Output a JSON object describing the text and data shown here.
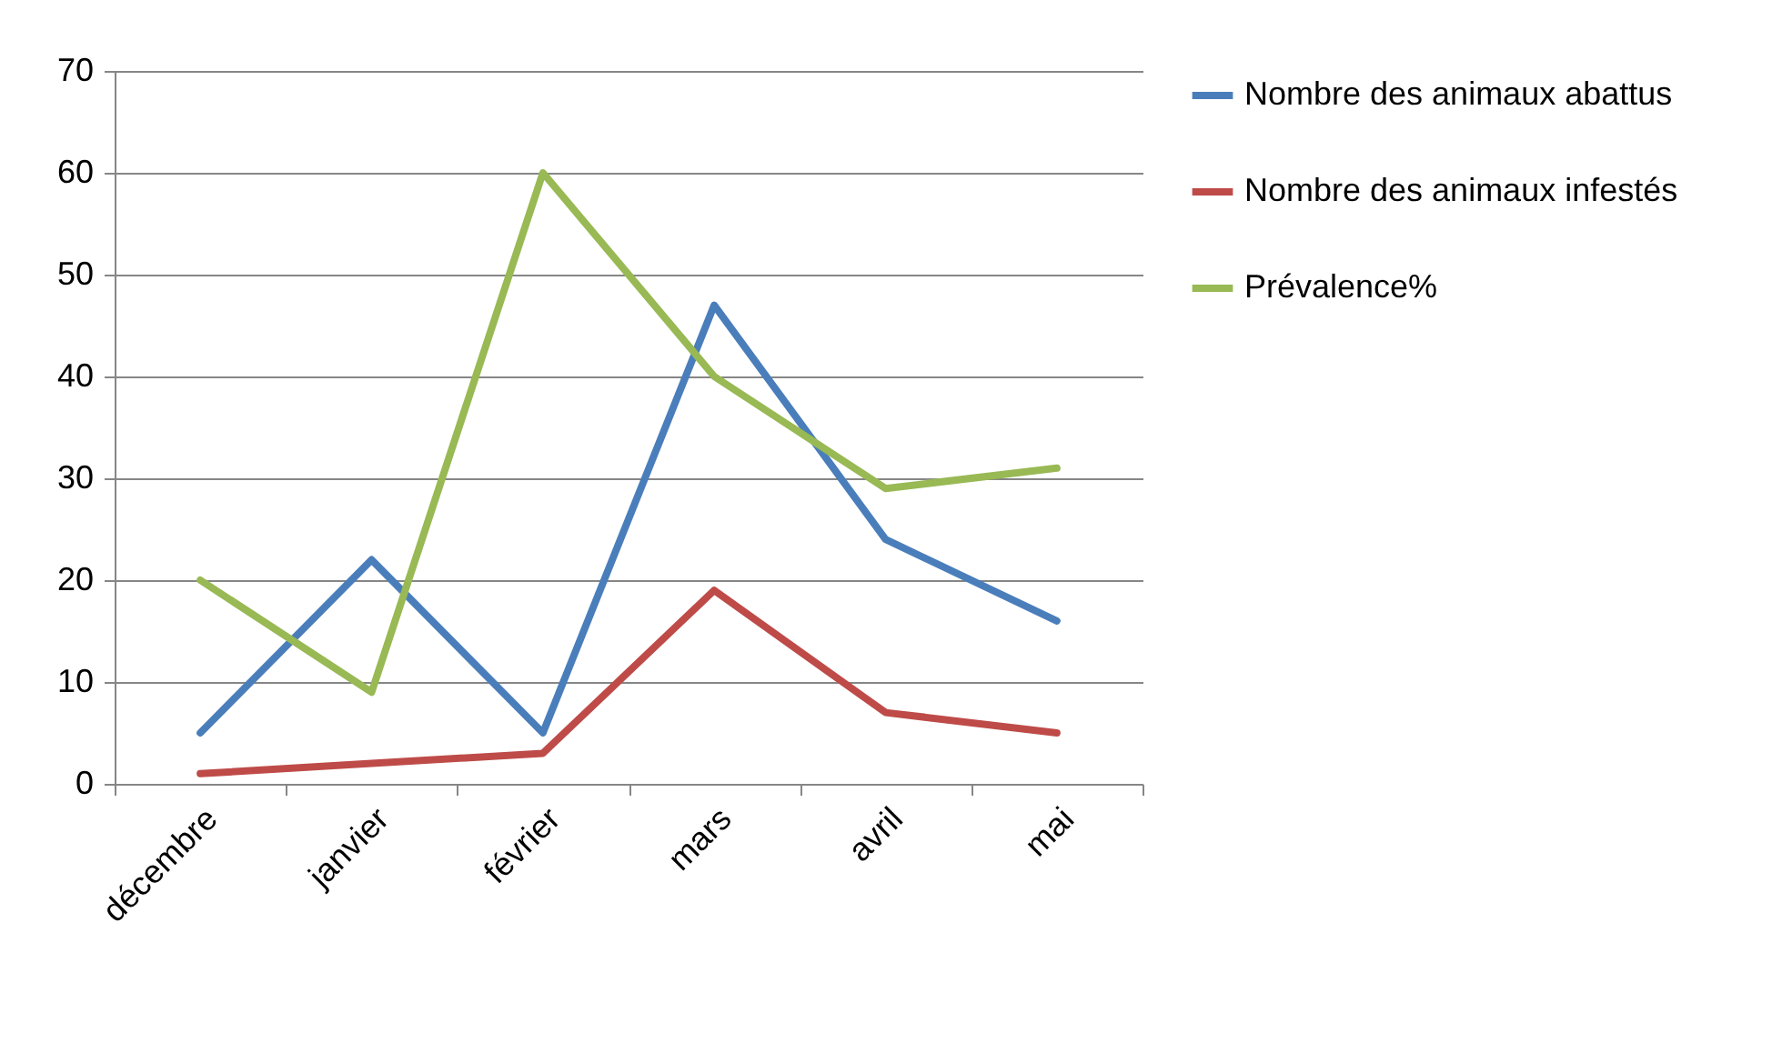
{
  "chart_data": {
    "type": "line",
    "categories": [
      "décembre",
      "janvier",
      "février",
      "mars",
      "avril",
      "mai"
    ],
    "series": [
      {
        "name": "Nombre des animaux abattus",
        "color": "#4a7ebb",
        "values": [
          5,
          22,
          5,
          47,
          24,
          16
        ]
      },
      {
        "name": "Nombre des animaux infestés",
        "color": "#be4b48",
        "values": [
          1,
          2,
          3,
          19,
          7,
          5
        ]
      },
      {
        "name": "Prévalence%",
        "color": "#98b954",
        "values": [
          20,
          9,
          60,
          40,
          29,
          31
        ]
      }
    ],
    "ylim": [
      0,
      70
    ],
    "yticks": [
      0,
      10,
      20,
      30,
      40,
      50,
      60,
      70
    ],
    "grid": "y",
    "legend": "right"
  }
}
